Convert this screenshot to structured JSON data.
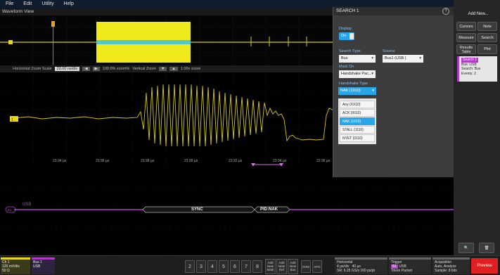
{
  "menu": {
    "items": [
      "File",
      "Edit",
      "Utility",
      "Help"
    ]
  },
  "waveform_view": {
    "title": "Waveform View"
  },
  "zoom_info": {
    "horizontal_label": "Horizontal Zoom Scale",
    "horizontal_value": "20.00 ns/div",
    "h_pos": "100.0% zoom%",
    "vertical_label": "Vertical Zoom",
    "v_pos": "1.00x zoom"
  },
  "time_labels": [
    "23.94 µs",
    "23.96 µs",
    "23.98 µs",
    "23.99 µs",
    "23.92 µs",
    "23.94 µs",
    "23.96 µs"
  ],
  "bus": {
    "label": "USB",
    "packet_sync": "SYNC",
    "packet_pid": "PID:NAK"
  },
  "search_panel": {
    "title": "SEARCH 1",
    "display_label": "Display",
    "display_value": "On",
    "search_type_label": "Search Type",
    "search_type_value": "Bus",
    "source_label": "Source",
    "source_value": "Bus1 (USB )",
    "mark_on_label": "Mark On",
    "mark_on_value": "Handshake Pac...",
    "handshake_type_label": "Handshake Type",
    "handshake_type_value": "NAK (1010)",
    "options": [
      "Any (XX10)",
      "ACK (0010)",
      "NAK (1010)",
      "STALL (1110)",
      "NYET (0110)"
    ],
    "selected_option": "NAK (1010)"
  },
  "sidebar": {
    "add_new": "Add New...",
    "cursors": "Cursors",
    "note": "Note",
    "measure": "Measure",
    "search": "Search",
    "results_table": "Results Table",
    "plot": "Plot",
    "search_badge": {
      "title": "Search 1",
      "line1": "Bus: USB",
      "line2": "Search: Bus",
      "line3": "Events: 2"
    }
  },
  "bottom": {
    "ch1": {
      "name": "Ch 1",
      "scale": "120 mV/div",
      "impedance": "50 Ω"
    },
    "bus1": {
      "name": "Bus 1",
      "type": "USB"
    },
    "channel_buttons": [
      "2",
      "3",
      "4",
      "5",
      "6",
      "7",
      "8"
    ],
    "add_buttons": [
      "Add New Math",
      "Add New Ref",
      "Add New Bus"
    ],
    "dvm": "DVM",
    "afg": "AFG",
    "horizontal": {
      "title": "Horizontal",
      "line1": "4 µs/div",
      "line1b": "40 µs",
      "line2": "SR: 6.25 GS/s",
      "line2b": "160 ps/pt"
    },
    "trigger": {
      "title": "Trigger",
      "line1": "USB",
      "line2": "Token Packet"
    },
    "acquisition": {
      "title": "Acquisition",
      "line1": "Auto,",
      "line1b": "Analyze",
      "line2": "Sample: 8 bits"
    },
    "preview": "Preview"
  },
  "colors": {
    "ch1": "#e8d81a",
    "bus": "#b03cc9",
    "accent": "#2aa6e8",
    "preview": "#e02020"
  }
}
